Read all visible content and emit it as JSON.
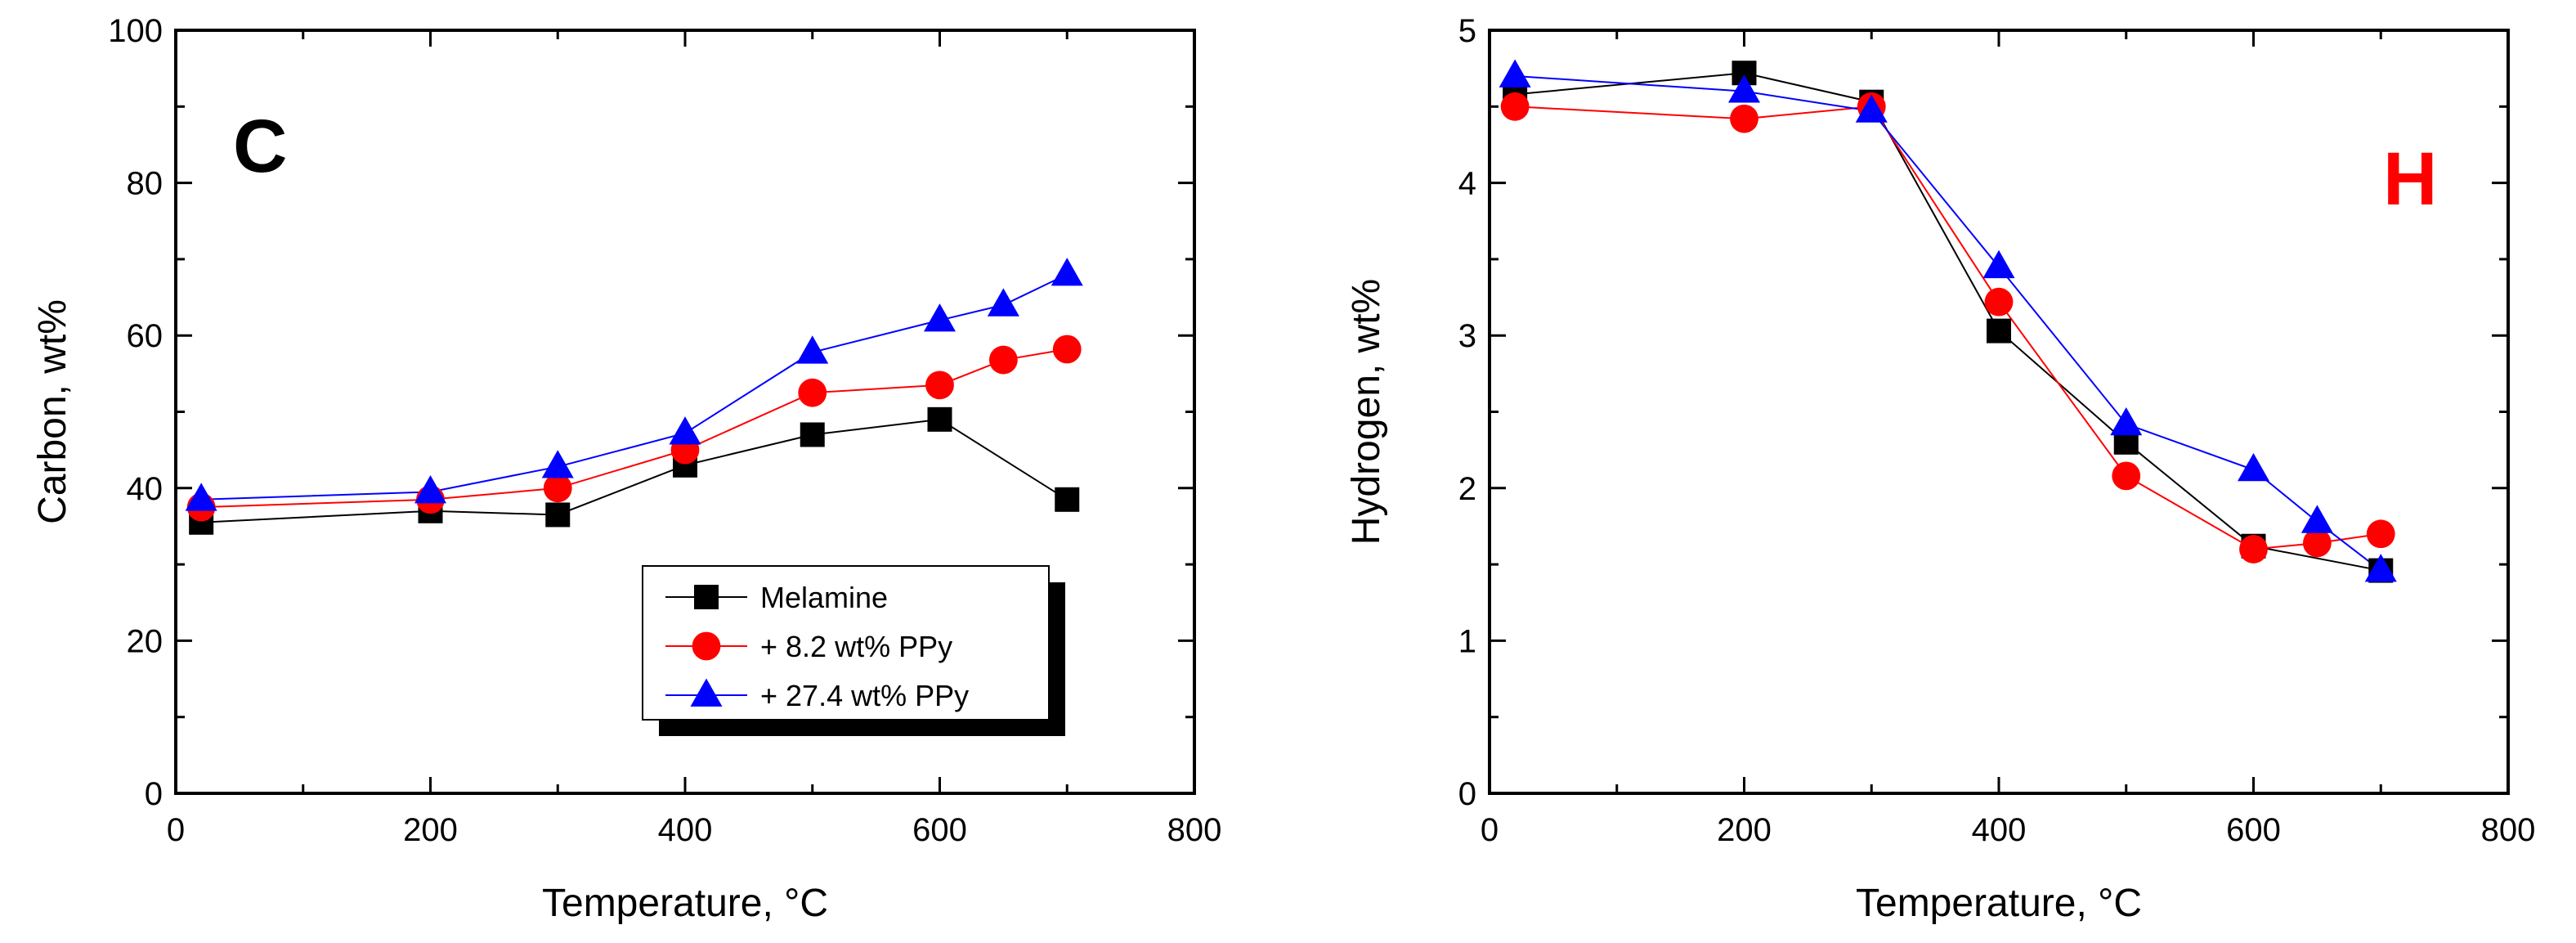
{
  "chart_data": [
    {
      "type": "line",
      "panel_label": "C",
      "panel_label_color": "#000000",
      "xlabel": "Temperature, °C",
      "ylabel": "Carbon, wt%",
      "xlim": [
        0,
        800
      ],
      "ylim": [
        0,
        100
      ],
      "xticks": [
        0,
        200,
        400,
        600,
        800
      ],
      "yticks": [
        0,
        20,
        40,
        60,
        80,
        100
      ],
      "grid": false,
      "legend": "lower-right",
      "series": [
        {
          "name": "Melamine",
          "color": "#000000",
          "marker": "square",
          "x": [
            20,
            200,
            300,
            400,
            500,
            600,
            700
          ],
          "y": [
            35.5,
            37,
            36.5,
            43,
            47,
            49,
            38.5
          ]
        },
        {
          "name": "+ 8.2 wt% PPy",
          "color": "#ff0000",
          "marker": "circle",
          "x": [
            20,
            200,
            300,
            400,
            500,
            600,
            650,
            700
          ],
          "y": [
            37.5,
            38.5,
            40,
            45,
            52.5,
            53.5,
            56.8,
            58.2
          ]
        },
        {
          "name": "+ 27.4 wt% PPy",
          "color": "#0000ff",
          "marker": "triangle",
          "x": [
            20,
            200,
            300,
            400,
            500,
            600,
            650,
            700
          ],
          "y": [
            38.5,
            39.5,
            42.8,
            47.2,
            57.8,
            62,
            64,
            68
          ]
        }
      ]
    },
    {
      "type": "line",
      "panel_label": "H",
      "panel_label_color": "#ff0000",
      "xlabel": "Temperature, °C",
      "ylabel": "Hydrogen, wt%",
      "xlim": [
        0,
        800
      ],
      "ylim": [
        0,
        5
      ],
      "xticks": [
        0,
        200,
        400,
        600,
        800
      ],
      "yticks": [
        0,
        1,
        2,
        3,
        4,
        5
      ],
      "grid": false,
      "legend": "none",
      "series": [
        {
          "name": "Melamine",
          "color": "#000000",
          "marker": "square",
          "x": [
            20,
            200,
            300,
            400,
            500,
            600,
            700
          ],
          "y": [
            4.58,
            4.72,
            4.53,
            3.03,
            2.3,
            1.62,
            1.46
          ]
        },
        {
          "name": "+ 8.2 wt% PPy",
          "color": "#ff0000",
          "marker": "circle",
          "x": [
            20,
            200,
            300,
            400,
            500,
            600,
            650,
            700
          ],
          "y": [
            4.5,
            4.42,
            4.5,
            3.22,
            2.08,
            1.6,
            1.64,
            1.7
          ]
        },
        {
          "name": "+ 27.4 wt% PPy",
          "color": "#0000ff",
          "marker": "triangle",
          "x": [
            20,
            200,
            300,
            400,
            500,
            600,
            650,
            700
          ],
          "y": [
            4.7,
            4.6,
            4.47,
            3.45,
            2.42,
            2.12,
            1.78,
            1.46
          ]
        }
      ]
    }
  ]
}
